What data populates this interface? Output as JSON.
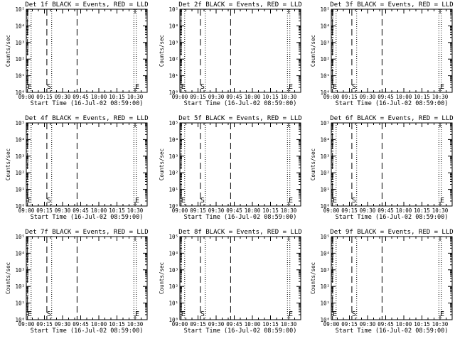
{
  "figure": {
    "x_ticks": [
      "09:00",
      "09:15",
      "09:30",
      "09:45",
      "10:00",
      "10:15",
      "10:30"
    ],
    "y_ticks": [
      "10⁰",
      "10¹",
      "10²",
      "10³",
      "10⁴",
      "10⁵"
    ],
    "ylabel": "Counts/sec",
    "xlabel": "Start Time (16-Jul-02 08:59:00)",
    "colors": {
      "events": "#000000",
      "lld": "#ff0000",
      "axes": "#000000"
    }
  },
  "chart_data": [
    {
      "type": "line",
      "title": "Det 1f BLACK = Events, RED = LLD",
      "xlabel": "Start Time (16-Jul-02 08:59:00)",
      "ylabel": "Counts/sec",
      "x_unit": "minutes after 09:00",
      "xlim": [
        0,
        100
      ],
      "ylim_exponent": [
        0,
        5
      ],
      "yscale": "log",
      "series": [],
      "vlines_dashed": [
        1,
        17,
        42
      ],
      "vlines_dotted": [
        4,
        21,
        89,
        91
      ],
      "markers": [
        {
          "text": "E",
          "x": 1
        },
        {
          "text": "S",
          "x": 17
        },
        {
          "text": "E",
          "x": 90
        }
      ]
    },
    {
      "type": "line",
      "title": "Det 2f BLACK = Events, RED = LLD",
      "xlabel": "Start Time (16-Jul-02 08:59:00)",
      "ylabel": "Counts/sec",
      "x_unit": "minutes after 09:00",
      "xlim": [
        0,
        100
      ],
      "ylim_exponent": [
        0,
        5
      ],
      "yscale": "log",
      "series": [],
      "vlines_dashed": [
        1,
        17,
        42
      ],
      "vlines_dotted": [
        4,
        21,
        89,
        91
      ],
      "markers": [
        {
          "text": "E",
          "x": 1
        },
        {
          "text": "S",
          "x": 17
        },
        {
          "text": "E",
          "x": 90
        }
      ]
    },
    {
      "type": "line",
      "title": "Det 3f BLACK = Events, RED = LLD",
      "xlabel": "Start Time (16-Jul-02 08:59:00)",
      "ylabel": "Counts/sec",
      "x_unit": "minutes after 09:00",
      "xlim": [
        0,
        100
      ],
      "ylim_exponent": [
        0,
        5
      ],
      "yscale": "log",
      "series": [],
      "vlines_dashed": [
        1,
        17,
        42
      ],
      "vlines_dotted": [
        4,
        21,
        89,
        91
      ],
      "markers": [
        {
          "text": "E",
          "x": 1
        },
        {
          "text": "S",
          "x": 17
        },
        {
          "text": "E",
          "x": 90
        }
      ]
    },
    {
      "type": "line",
      "title": "Det 4f BLACK = Events, RED = LLD",
      "xlabel": "Start Time (16-Jul-02 08:59:00)",
      "ylabel": "Counts/sec",
      "x_unit": "minutes after 09:00",
      "xlim": [
        0,
        100
      ],
      "ylim_exponent": [
        0,
        5
      ],
      "yscale": "log",
      "series": [],
      "vlines_dashed": [
        1,
        17,
        42
      ],
      "vlines_dotted": [
        4,
        21,
        89,
        91
      ],
      "markers": [
        {
          "text": "E",
          "x": 1
        },
        {
          "text": "S",
          "x": 17
        },
        {
          "text": "E",
          "x": 90
        }
      ]
    },
    {
      "type": "line",
      "title": "Det 5f BLACK = Events, RED = LLD",
      "xlabel": "Start Time (16-Jul-02 08:59:00)",
      "ylabel": "Counts/sec",
      "x_unit": "minutes after 09:00",
      "xlim": [
        0,
        100
      ],
      "ylim_exponent": [
        0,
        5
      ],
      "yscale": "log",
      "series": [],
      "vlines_dashed": [
        1,
        17,
        42
      ],
      "vlines_dotted": [
        4,
        21,
        89,
        91
      ],
      "markers": [
        {
          "text": "E",
          "x": 1
        },
        {
          "text": "S",
          "x": 17
        },
        {
          "text": "E",
          "x": 90
        }
      ]
    },
    {
      "type": "line",
      "title": "Det 6f BLACK = Events, RED = LLD",
      "xlabel": "Start Time (16-Jul-02 08:59:00)",
      "ylabel": "Counts/sec",
      "x_unit": "minutes after 09:00",
      "xlim": [
        0,
        100
      ],
      "ylim_exponent": [
        0,
        5
      ],
      "yscale": "log",
      "series": [],
      "vlines_dashed": [
        1,
        17,
        42
      ],
      "vlines_dotted": [
        4,
        21,
        89,
        91
      ],
      "markers": [
        {
          "text": "E",
          "x": 1
        },
        {
          "text": "S",
          "x": 17
        },
        {
          "text": "E",
          "x": 90
        }
      ]
    },
    {
      "type": "line",
      "title": "Det 7f BLACK = Events, RED = LLD",
      "xlabel": "Start Time (16-Jul-02 08:59:00)",
      "ylabel": "Counts/sec",
      "x_unit": "minutes after 09:00",
      "xlim": [
        0,
        100
      ],
      "ylim_exponent": [
        0,
        5
      ],
      "yscale": "log",
      "series": [],
      "vlines_dashed": [
        1,
        17,
        42
      ],
      "vlines_dotted": [
        4,
        21,
        89,
        91
      ],
      "markers": [
        {
          "text": "E",
          "x": 1
        },
        {
          "text": "S",
          "x": 17
        },
        {
          "text": "E",
          "x": 90
        }
      ]
    },
    {
      "type": "line",
      "title": "Det 8f BLACK = Events, RED = LLD",
      "xlabel": "Start Time (16-Jul-02 08:59:00)",
      "ylabel": "Counts/sec",
      "x_unit": "minutes after 09:00",
      "xlim": [
        0,
        100
      ],
      "ylim_exponent": [
        0,
        5
      ],
      "yscale": "log",
      "series": [],
      "vlines_dashed": [
        1,
        17,
        42
      ],
      "vlines_dotted": [
        4,
        21,
        89,
        91
      ],
      "markers": [
        {
          "text": "E",
          "x": 1
        },
        {
          "text": "S",
          "x": 17
        },
        {
          "text": "E",
          "x": 90
        }
      ]
    },
    {
      "type": "line",
      "title": "Det 9f BLACK = Events, RED = LLD",
      "xlabel": "Start Time (16-Jul-02 08:59:00)",
      "ylabel": "Counts/sec",
      "x_unit": "minutes after 09:00",
      "xlim": [
        0,
        100
      ],
      "ylim_exponent": [
        0,
        5
      ],
      "yscale": "log",
      "series": [],
      "vlines_dashed": [
        1,
        17,
        42
      ],
      "vlines_dotted": [
        4,
        21,
        89,
        91
      ],
      "markers": [
        {
          "text": "E",
          "x": 1
        },
        {
          "text": "S",
          "x": 17
        },
        {
          "text": "E",
          "x": 90
        }
      ]
    }
  ]
}
